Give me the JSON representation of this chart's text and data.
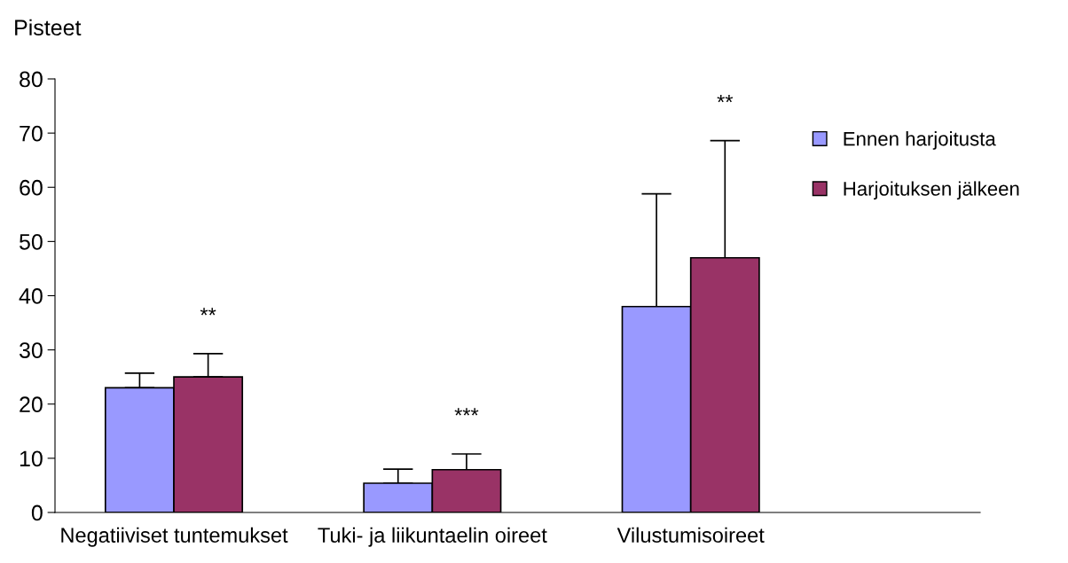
{
  "chart_data": {
    "type": "bar",
    "ylabel": "Pisteet",
    "categories": [
      "Negatiiviset tuntemukset",
      "Tuki- ja liikuntaelin oireet",
      "Vilustumisoireet"
    ],
    "series": [
      {
        "name": "Ennen harjoitusta",
        "color": "#9999ff",
        "values": [
          23,
          5.4,
          38
        ],
        "errors": [
          [
            23,
            25.7
          ],
          [
            5.4,
            8
          ],
          [
            38,
            58.8
          ]
        ]
      },
      {
        "name": "Harjoituksen jälkeen",
        "color": "#993366",
        "values": [
          25,
          7.9,
          47
        ],
        "errors": [
          [
            25,
            29.3
          ],
          [
            7.9,
            10.8
          ],
          [
            47,
            68.6
          ]
        ]
      }
    ],
    "ylim": [
      0,
      80
    ],
    "yticks": [
      0,
      10,
      20,
      30,
      40,
      50,
      60,
      70,
      80
    ],
    "grid": false,
    "legend": "top right",
    "annotations": [
      "**",
      "***",
      "**"
    ]
  }
}
